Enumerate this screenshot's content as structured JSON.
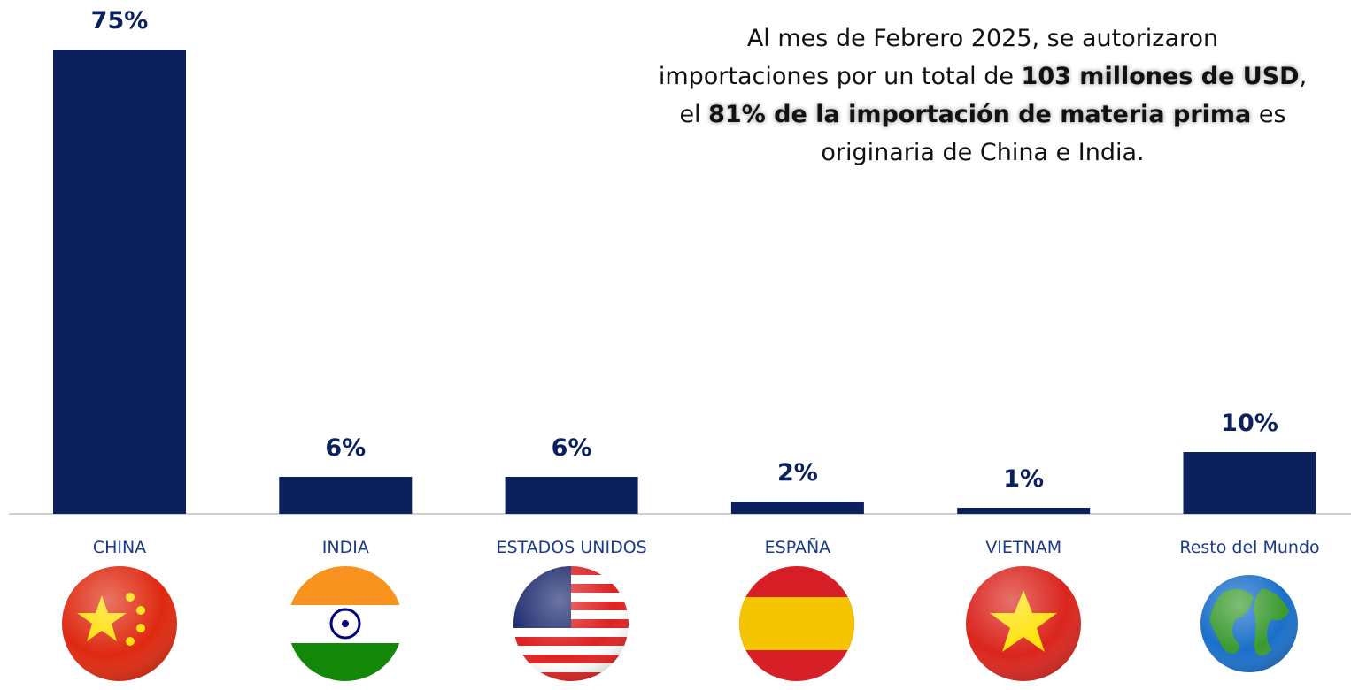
{
  "chart_data": {
    "type": "bar",
    "categories": [
      "CHINA",
      "INDIA",
      "ESTADOS UNIDOS",
      "ESPAÑA",
      "VIETNAM",
      "Resto del Mundo"
    ],
    "values": [
      75,
      6,
      6,
      2,
      1,
      10
    ],
    "value_labels": [
      "75%",
      "6%",
      "6%",
      "2%",
      "1%",
      "10%"
    ],
    "color": "#0b215e",
    "annotation": [
      [
        "Al mes de Febrero 2025, se autorizaron"
      ],
      [
        "importaciones por un total de ",
        "103 millones de USD",
        ","
      ],
      [
        "el ",
        "81% de la importación de materia prima",
        " es"
      ],
      [
        "originaria de China e India."
      ]
    ]
  }
}
